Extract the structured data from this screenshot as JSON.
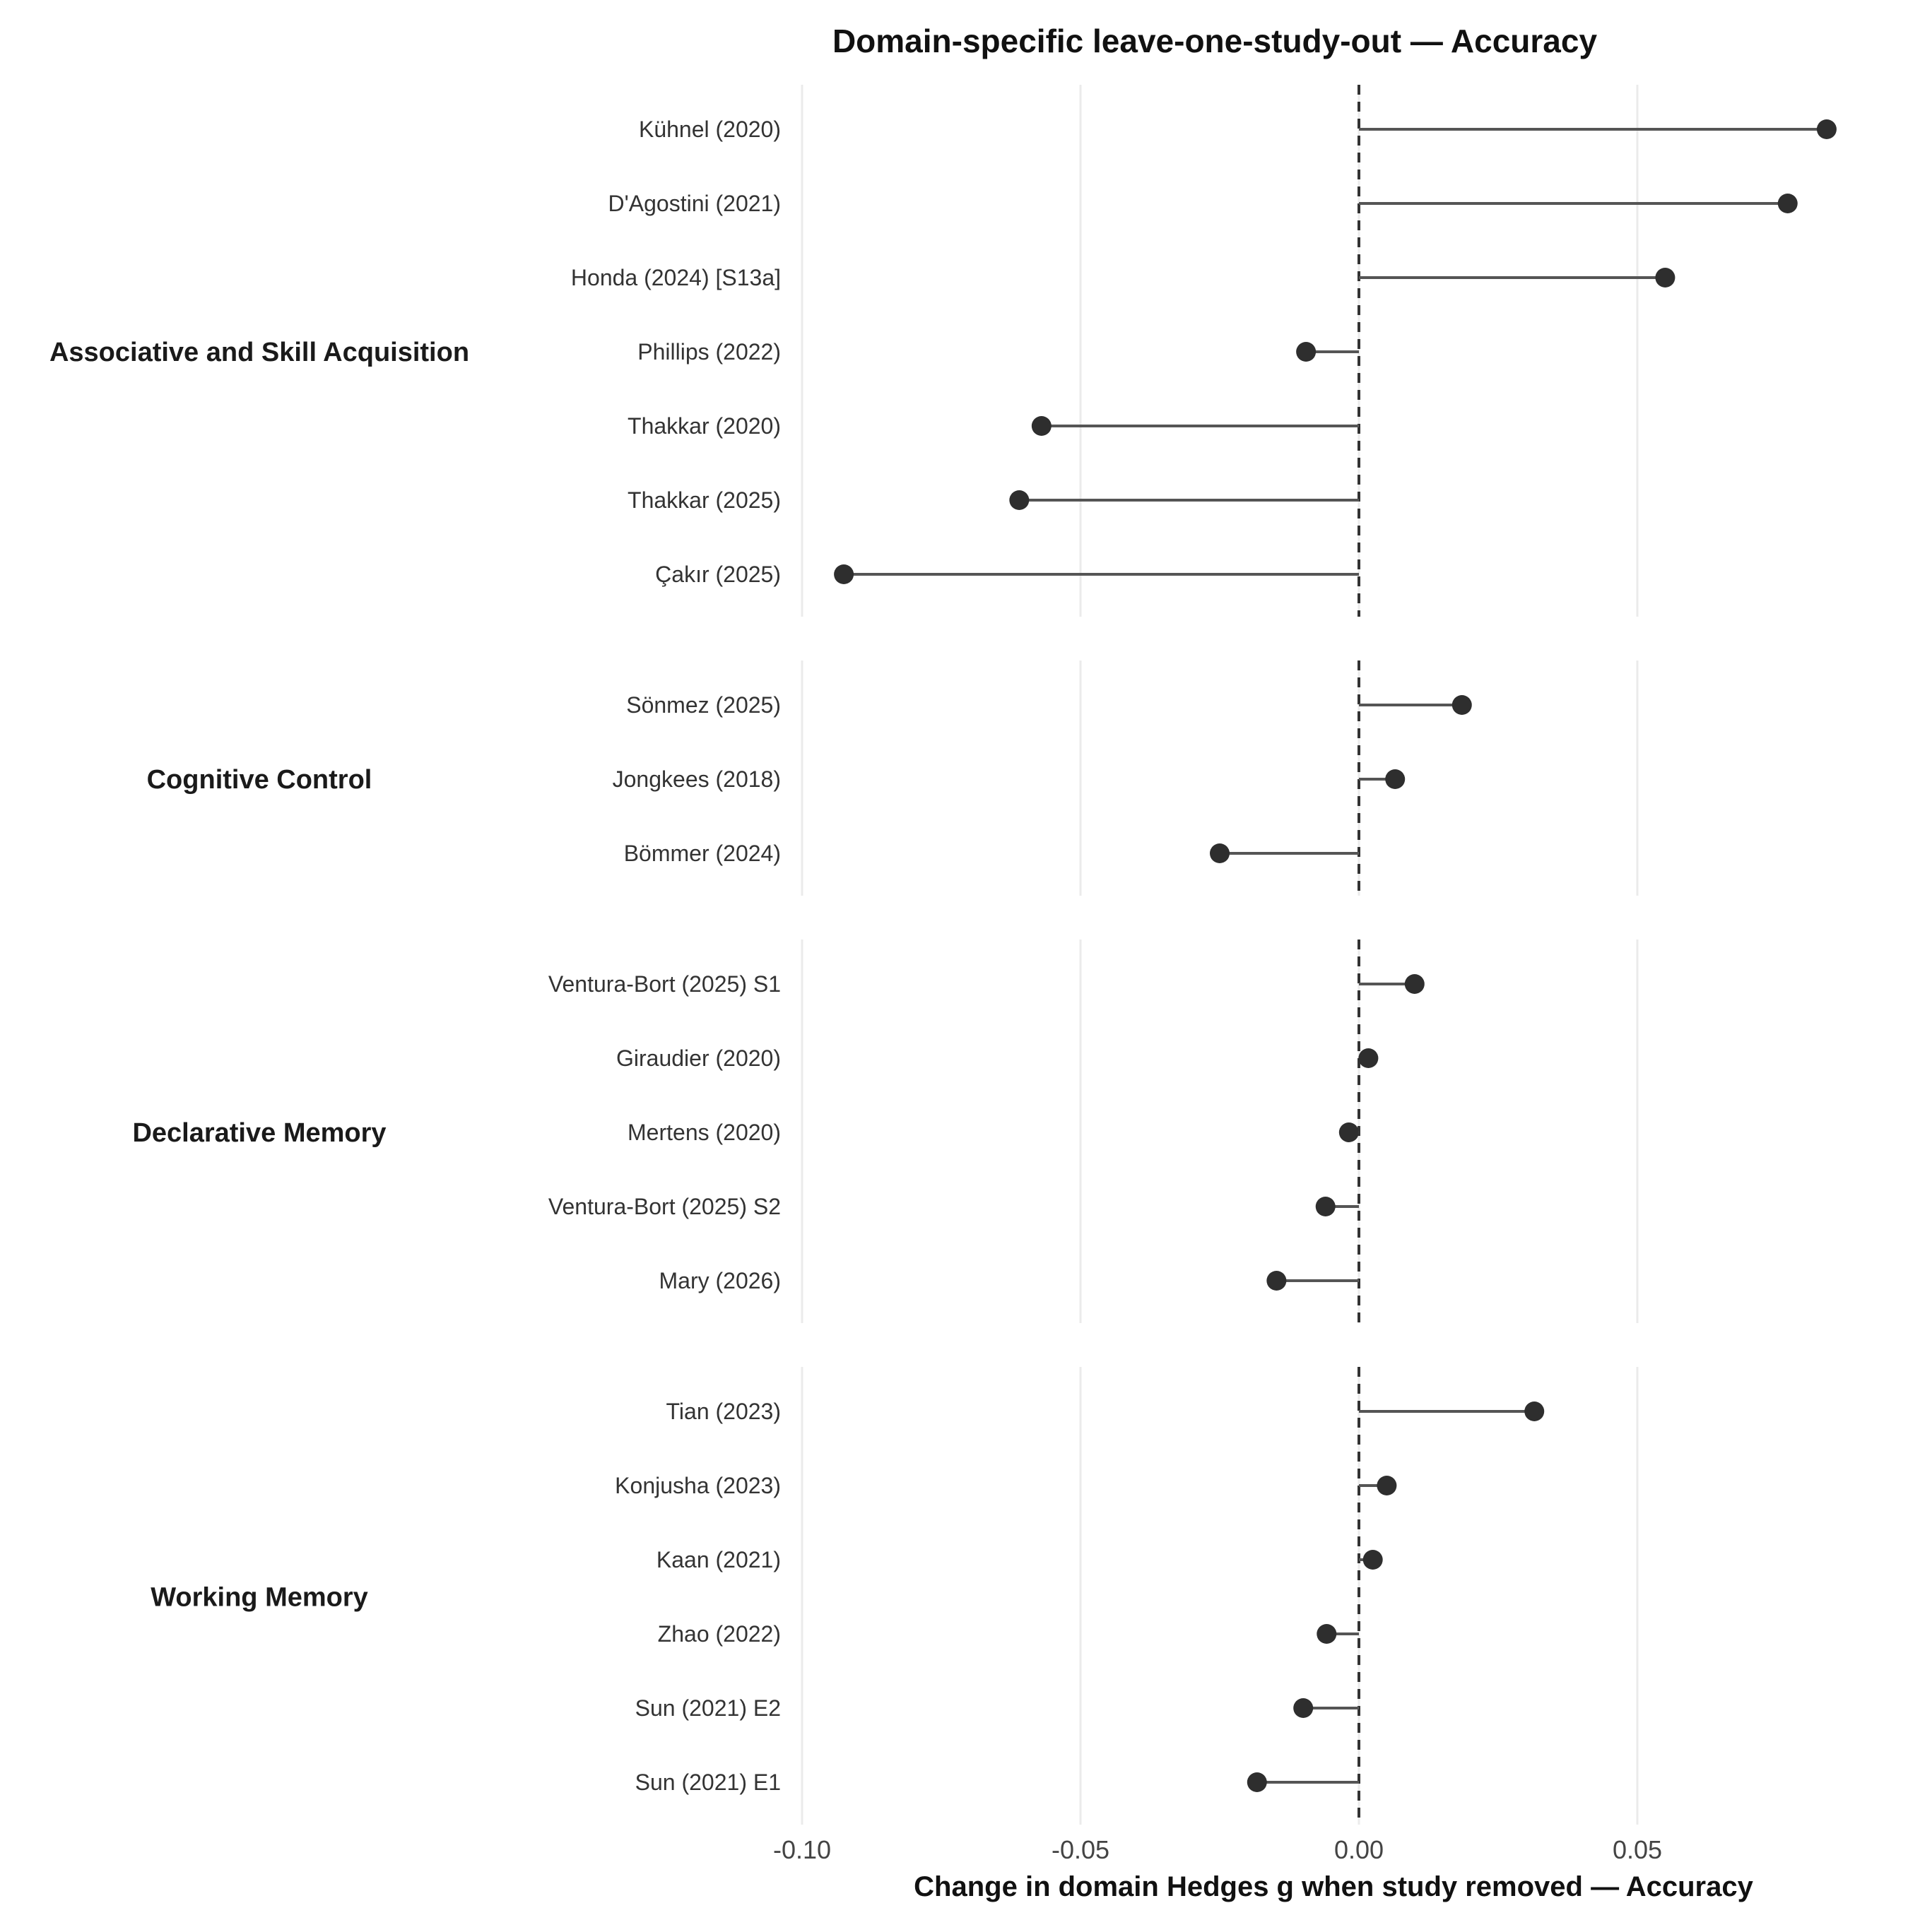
{
  "chart_data": {
    "type": "lollipop",
    "title": "Domain-specific leave-one-study-out — Accuracy",
    "xlabel": "Change in domain Hedges g when study removed — Accuracy",
    "xlim": [
      -0.1,
      0.085
    ],
    "xticks": [
      -0.1,
      -0.05,
      0.0,
      0.05
    ],
    "xtick_labels": [
      "-0.10",
      "-0.05",
      "0.00",
      "0.05"
    ],
    "reference_line": 0.0,
    "grid": true,
    "panels": [
      {
        "domain": "Associative and Skill Acquisition",
        "studies": [
          {
            "label": "Kühnel (2020)",
            "value": 0.084
          },
          {
            "label": "D'Agostini (2021)",
            "value": 0.077
          },
          {
            "label": "Honda (2024) [S13a]",
            "value": 0.055
          },
          {
            "label": "Phillips (2022)",
            "value": -0.0095
          },
          {
            "label": "Thakkar (2020)",
            "value": -0.057
          },
          {
            "label": "Thakkar (2025)",
            "value": -0.061
          },
          {
            "label": "Çakır (2025)",
            "value": -0.0925
          }
        ]
      },
      {
        "domain": "Cognitive Control",
        "studies": [
          {
            "label": "Sönmez (2025)",
            "value": 0.0185
          },
          {
            "label": "Jongkees (2018)",
            "value": 0.0065
          },
          {
            "label": "Bömmer (2024)",
            "value": -0.025
          }
        ]
      },
      {
        "domain": "Declarative Memory",
        "studies": [
          {
            "label": "Ventura-Bort (2025) S1",
            "value": 0.01
          },
          {
            "label": "Giraudier (2020)",
            "value": 0.0017
          },
          {
            "label": "Mertens (2020)",
            "value": -0.0018
          },
          {
            "label": "Ventura-Bort (2025) S2",
            "value": -0.006
          },
          {
            "label": "Mary (2026)",
            "value": -0.0148
          }
        ]
      },
      {
        "domain": "Working Memory",
        "studies": [
          {
            "label": "Tian (2023)",
            "value": 0.0315
          },
          {
            "label": "Konjusha (2023)",
            "value": 0.005
          },
          {
            "label": "Kaan (2021)",
            "value": 0.0025
          },
          {
            "label": "Zhao (2022)",
            "value": -0.0058
          },
          {
            "label": "Sun (2021) E2",
            "value": -0.01
          },
          {
            "label": "Sun (2021) E1",
            "value": -0.0183
          }
        ]
      }
    ]
  }
}
